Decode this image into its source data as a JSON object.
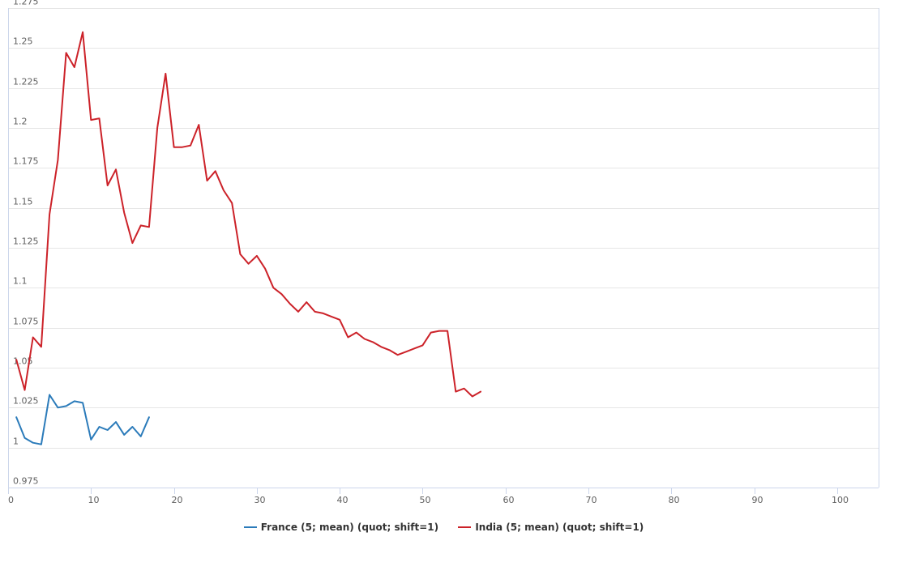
{
  "chart_data": {
    "type": "line",
    "title": "",
    "xlabel": "",
    "ylabel": "",
    "xlim": [
      0,
      105
    ],
    "ylim": [
      0.975,
      1.275
    ],
    "x_ticks": [
      0,
      10,
      20,
      30,
      40,
      50,
      60,
      70,
      80,
      90,
      100
    ],
    "y_ticks": [
      0.975,
      1,
      1.025,
      1.05,
      1.075,
      1.1,
      1.125,
      1.15,
      1.175,
      1.2,
      1.225,
      1.25,
      1.275
    ],
    "grid": "horizontal",
    "legend_position": "bottom-center",
    "series": [
      {
        "name": "France (5; mean) (quot; shift=1)",
        "color": "#2b7bba",
        "x": [
          1,
          2,
          3,
          4,
          5,
          6,
          7,
          8,
          9,
          10,
          11,
          12,
          13,
          14,
          15,
          16,
          17
        ],
        "y": [
          1.019,
          1.006,
          1.003,
          1.002,
          1.033,
          1.025,
          1.026,
          1.029,
          1.028,
          1.005,
          1.013,
          1.011,
          1.016,
          1.008,
          1.013,
          1.007,
          1.019
        ]
      },
      {
        "name": "India (5; mean) (quot; shift=1)",
        "color": "#cc2229",
        "x": [
          1,
          2,
          3,
          4,
          5,
          6,
          7,
          8,
          9,
          10,
          11,
          12,
          13,
          14,
          15,
          16,
          17,
          18,
          19,
          20,
          21,
          22,
          23,
          24,
          25,
          26,
          27,
          28,
          29,
          30,
          31,
          32,
          33,
          34,
          35,
          36,
          37,
          38,
          39,
          40,
          41,
          42,
          43,
          44,
          45,
          46,
          47,
          48,
          49,
          50,
          51,
          52,
          53,
          54,
          55,
          56,
          57
        ],
        "y": [
          1.055,
          1.036,
          1.069,
          1.063,
          1.146,
          1.18,
          1.247,
          1.238,
          1.26,
          1.205,
          1.206,
          1.164,
          1.174,
          1.147,
          1.128,
          1.139,
          1.138,
          1.2,
          1.234,
          1.188,
          1.188,
          1.189,
          1.202,
          1.167,
          1.173,
          1.161,
          1.153,
          1.121,
          1.115,
          1.12,
          1.112,
          1.1,
          1.096,
          1.09,
          1.085,
          1.091,
          1.085,
          1.084,
          1.082,
          1.08,
          1.069,
          1.072,
          1.068,
          1.066,
          1.063,
          1.061,
          1.058,
          1.06,
          1.062,
          1.064,
          1.072,
          1.073,
          1.073,
          1.035,
          1.037,
          1.032,
          1.035
        ]
      }
    ]
  }
}
